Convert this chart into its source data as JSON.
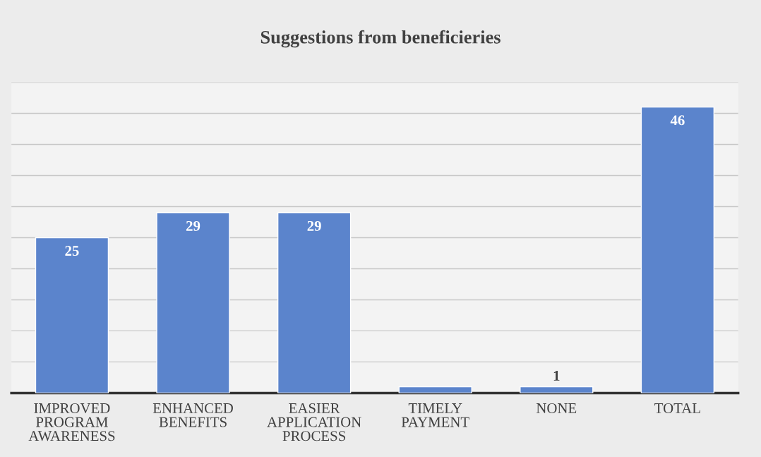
{
  "chart_data": {
    "type": "bar",
    "title": "Suggestions from beneficieries",
    "categories": [
      "IMPROVED PROGRAM AWARENESS",
      "ENHANCED BENEFITS",
      "EASIER APPLICATION PROCESS",
      "TIMELY PAYMENT",
      "NONE",
      "TOTAL"
    ],
    "values": [
      25,
      29,
      29,
      1,
      1,
      46
    ],
    "value_labels": [
      "25",
      "29",
      "29",
      null,
      "1",
      "46"
    ],
    "color": "#5b84cc",
    "ylim": [
      0,
      50
    ],
    "yticks": [
      {
        "value": 0,
        "label": null
      },
      {
        "value": 5,
        "label": null
      },
      {
        "value": 10,
        "label": null
      },
      {
        "value": 15,
        "label": null
      },
      {
        "value": 20,
        "label": null
      },
      {
        "value": 25,
        "label": null
      },
      {
        "value": 30,
        "label": null
      },
      {
        "value": 35,
        "label": null
      },
      {
        "value": 40,
        "label": null
      },
      {
        "value": 45,
        "label": null
      },
      {
        "value": 50,
        "label": null
      }
    ],
    "tick_labels": "x",
    "grid": "y",
    "legend": false
  }
}
